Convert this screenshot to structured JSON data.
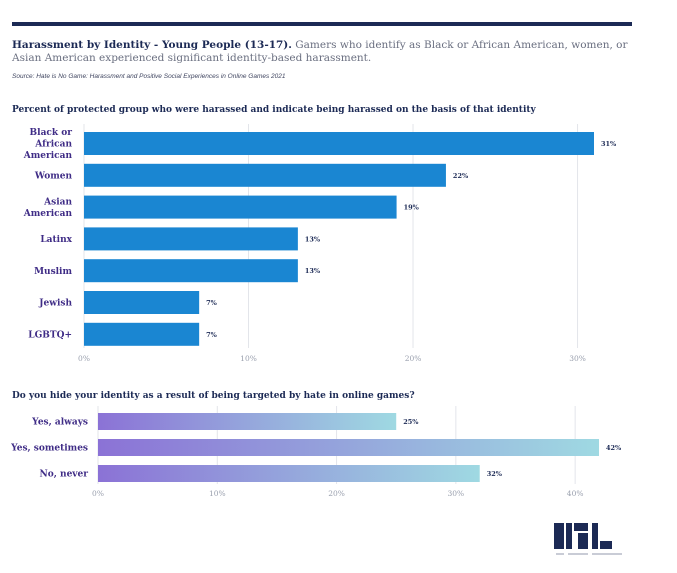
{
  "header": {
    "title_bold": "Harassment by Identity - Young People (13-17).",
    "title_rest": " Gamers who identify as Black or African American, women, or Asian American experienced significant identity-based harassment.",
    "source": "Source: Hate is No Game: Harassment and Positive Social Experiences in Online Games 2021"
  },
  "chart_data": [
    {
      "type": "bar",
      "orientation": "horizontal",
      "title": "Percent of protected group who were harassed and indicate being harassed on the basis of that identity",
      "categories": [
        [
          "Black or",
          "African",
          "American"
        ],
        [
          "Women"
        ],
        [
          "Asian",
          "American"
        ],
        [
          "Latinx"
        ],
        [
          "Muslim"
        ],
        [
          "Jewish"
        ],
        [
          "LGBTQ+"
        ]
      ],
      "values": [
        31,
        22,
        19,
        13,
        13,
        7,
        7
      ],
      "value_labels": [
        "31%",
        "22%",
        "19%",
        "13%",
        "13%",
        "7%",
        "7%"
      ],
      "xlim": [
        0,
        31
      ],
      "ticks": [
        0,
        10,
        20,
        30
      ],
      "tick_labels": [
        "0%",
        "10%",
        "20%",
        "30%"
      ],
      "bar_color": "#1a86d2",
      "grid": true
    },
    {
      "type": "bar",
      "orientation": "horizontal",
      "title": "Do you hide your identity as a result of being targeted by hate in online games?",
      "categories": [
        [
          "Yes, always"
        ],
        [
          "Yes, sometimes"
        ],
        [
          "No, never"
        ]
      ],
      "values": [
        25,
        42,
        32
      ],
      "value_labels": [
        "25%",
        "42%",
        "32%"
      ],
      "xlim": [
        0,
        42
      ],
      "ticks": [
        0,
        10,
        20,
        30,
        40
      ],
      "tick_labels": [
        "0%",
        "10%",
        "20%",
        "30%",
        "40%"
      ],
      "gradient": [
        "#8b72d6",
        "#9fd9e2"
      ],
      "grid": true
    }
  ]
}
